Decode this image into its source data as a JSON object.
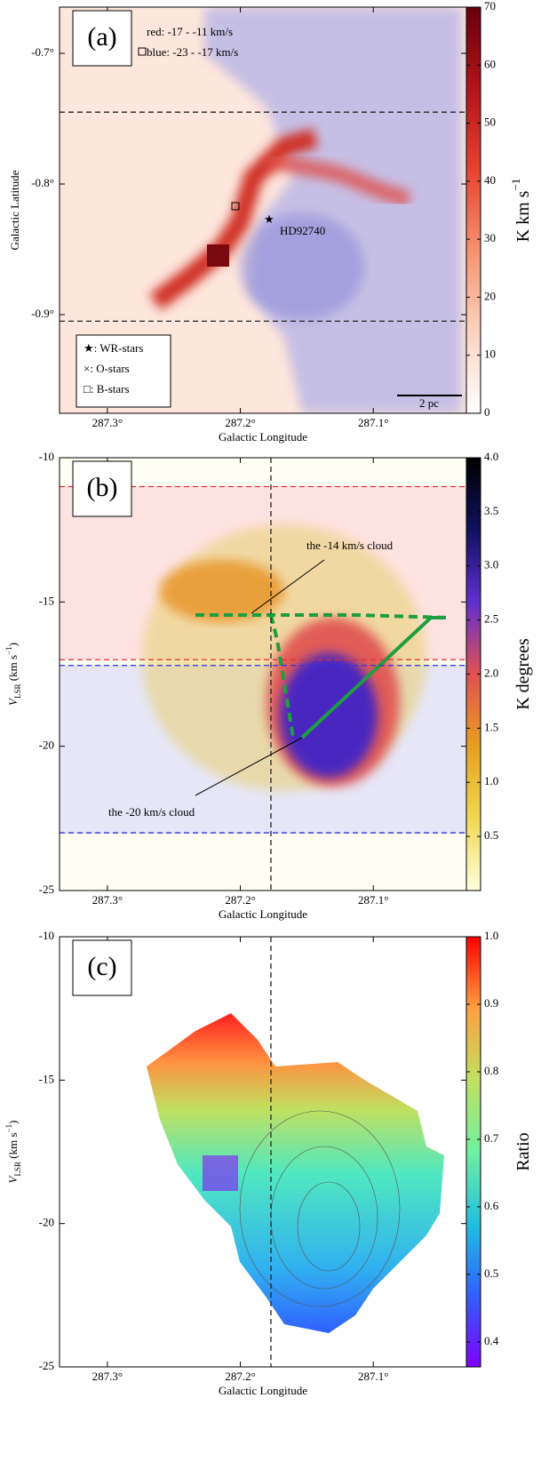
{
  "chart_data": [
    {
      "type": "map",
      "panel_label": "(a)",
      "annotations": [
        "red: -17 - -11 km/s",
        "blue: -23 - -17 km/s",
        "HD92740",
        "2 pc"
      ],
      "legend": [
        "★: WR-stars",
        "×: O-stars",
        "□: B-stars"
      ],
      "xlabel": "Galactic Longitude",
      "ylabel": "Galactic Latitude",
      "xlim": [
        287.336,
        287.03
      ],
      "xticks": [
        {
          "value": 287.3,
          "label": "287.3°"
        },
        {
          "value": 287.2,
          "label": "287.2°"
        },
        {
          "value": 287.1,
          "label": "287.1°"
        }
      ],
      "ylim": [
        -0.9755,
        -0.6646
      ],
      "yticks": [
        {
          "value": -0.7,
          "label": "-0.7°"
        },
        {
          "value": -0.8,
          "label": "-0.8°"
        },
        {
          "value": -0.9,
          "label": "-0.9°"
        }
      ],
      "hlines": [
        {
          "value": -0.745,
          "color": "#222"
        },
        {
          "value": -0.905,
          "color": "#222"
        }
      ],
      "colorbar": {
        "label": "K km s",
        "label_sup": "−1",
        "lim": [
          0,
          70
        ],
        "ticks": [
          0,
          10,
          20,
          30,
          40,
          50,
          60,
          70
        ],
        "colors": [
          "#ffffff",
          "#fcd3c0",
          "#f6926f",
          "#e6432f",
          "#b3131b",
          "#67000d"
        ]
      }
    },
    {
      "type": "map",
      "panel_label": "(b)",
      "annotations": [
        "the -14 km/s cloud",
        "the -20 km/s cloud"
      ],
      "xlabel": "Galactic Longitude",
      "ylabel": [
        "V",
        "LSR",
        " (km s",
        "−1",
        ")"
      ],
      "xlim": [
        287.336,
        287.03
      ],
      "xticks": [
        {
          "value": 287.3,
          "label": "287.3°"
        },
        {
          "value": 287.2,
          "label": "287.2°"
        },
        {
          "value": 287.1,
          "label": "287.1°"
        }
      ],
      "ylim": [
        -25,
        -10
      ],
      "yticks": [
        -10,
        -15,
        -20,
        -25
      ],
      "hlines": [
        {
          "value": -11,
          "color": "#e03030"
        },
        {
          "value": -17,
          "color": "#e03030"
        },
        {
          "value": -17.2,
          "color": "#3030e0"
        },
        {
          "value": -23,
          "color": "#3030e0"
        }
      ],
      "vline": 287.177,
      "colorbar": {
        "label": "K degrees",
        "lim": [
          0,
          4
        ],
        "ticks": [
          {
            "value": 0.5,
            "label": "0.5"
          },
          {
            "value": 1,
            "label": "1.0"
          },
          {
            "value": 1.5,
            "label": "1.5"
          },
          {
            "value": 2,
            "label": "2.0"
          },
          {
            "value": 2.5,
            "label": "2.5"
          },
          {
            "value": 3,
            "label": "3.0"
          },
          {
            "value": 3.5,
            "label": "3.5"
          },
          {
            "value": 4,
            "label": "4.0"
          }
        ],
        "colors": [
          "#ffffe0",
          "#f0d850",
          "#e8a020",
          "#e05050",
          "#6030d0",
          "#101060",
          "#000000"
        ]
      }
    },
    {
      "type": "map",
      "panel_label": "(c)",
      "xlabel": "Galactic Longitude",
      "ylabel": [
        "V",
        "LSR",
        " (km s",
        "−1",
        ")"
      ],
      "xlim": [
        287.336,
        287.03
      ],
      "xticks": [
        {
          "value": 287.3,
          "label": "287.3°"
        },
        {
          "value": 287.2,
          "label": "287.2°"
        },
        {
          "value": 287.1,
          "label": "287.1°"
        }
      ],
      "ylim": [
        -25,
        -10
      ],
      "yticks": [
        -10,
        -15,
        -20,
        -25
      ],
      "vline": 287.177,
      "colorbar": {
        "label": "Ratio",
        "lim": [
          0.363,
          1
        ],
        "ticks": [
          0.4,
          0.5,
          0.6,
          0.7,
          0.8,
          0.9,
          {
            "value": 1,
            "label": "1.0"
          }
        ],
        "colors": [
          "#7f00ff",
          "#3060ff",
          "#20c0e0",
          "#70f0a0",
          "#c0e060",
          "#ffa040",
          "#ff0000"
        ]
      }
    }
  ]
}
